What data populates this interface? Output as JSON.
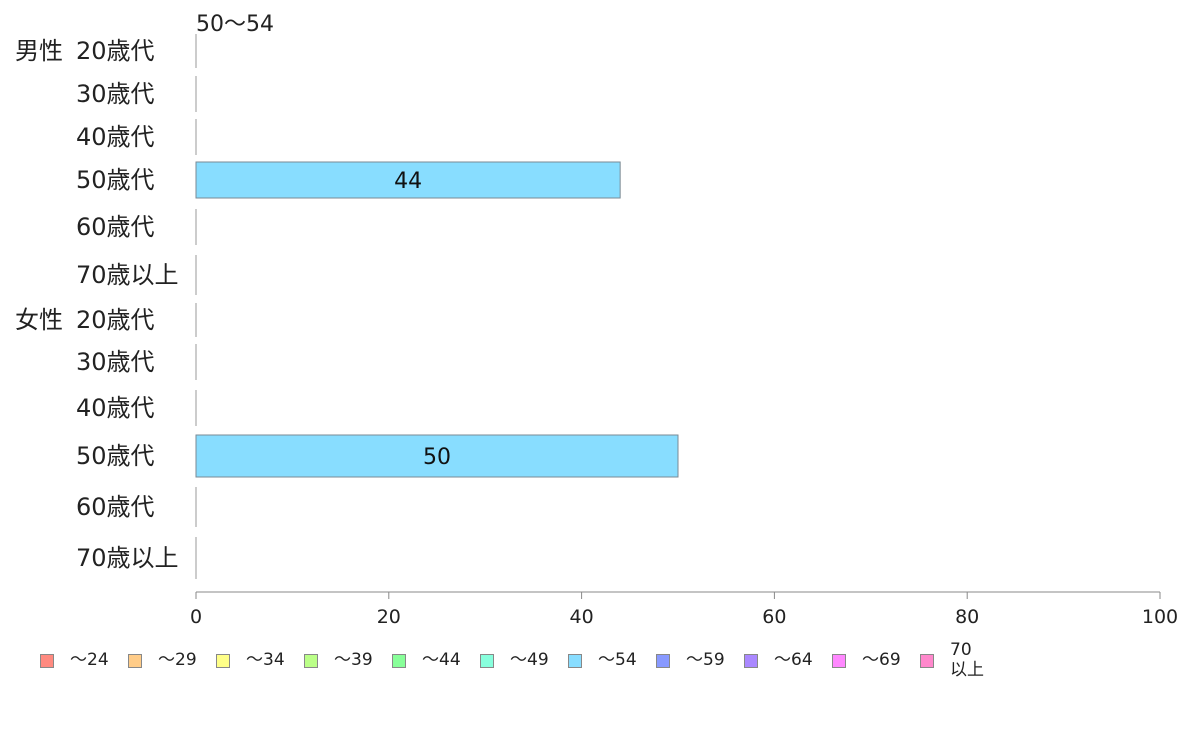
{
  "top_label": "50〜54",
  "chart_data": {
    "type": "bar",
    "orientation": "horizontal",
    "groups": [
      {
        "label": "男性",
        "categories": [
          "20歳代",
          "30歳代",
          "40歳代",
          "50歳代",
          "60歳代",
          "70歳以上"
        ]
      },
      {
        "label": "女性",
        "categories": [
          "20歳代",
          "30歳代",
          "40歳代",
          "50歳代",
          "60歳代",
          "70歳以上"
        ]
      }
    ],
    "series": [
      {
        "name": "50〜54",
        "color": "#88ddff",
        "values": [
          0,
          0,
          0,
          44,
          0,
          0,
          0,
          0,
          0,
          50,
          0,
          0
        ]
      }
    ],
    "data_labels": [
      "",
      "",
      "",
      "44",
      "",
      "",
      "",
      "",
      "",
      "50",
      "",
      ""
    ],
    "xlim": [
      0,
      100
    ],
    "xticks": [
      "0",
      "20",
      "40",
      "60",
      "80",
      "100"
    ],
    "grid": false,
    "legend_position": "bottom"
  },
  "legend": [
    {
      "label": "〜24",
      "color": "#ff8a80"
    },
    {
      "label": "〜29",
      "color": "#ffcc88"
    },
    {
      "label": "〜34",
      "color": "#ffff88"
    },
    {
      "label": "〜39",
      "color": "#bbff88"
    },
    {
      "label": "〜44",
      "color": "#88ff99"
    },
    {
      "label": "〜49",
      "color": "#88ffdd"
    },
    {
      "label": "〜54",
      "color": "#88ddff"
    },
    {
      "label": "〜59",
      "color": "#8899ff"
    },
    {
      "label": "〜64",
      "color": "#aa88ff"
    },
    {
      "label": "〜69",
      "color": "#ff88ff"
    },
    {
      "label": "70\n以上",
      "color": "#ff88cc"
    }
  ]
}
